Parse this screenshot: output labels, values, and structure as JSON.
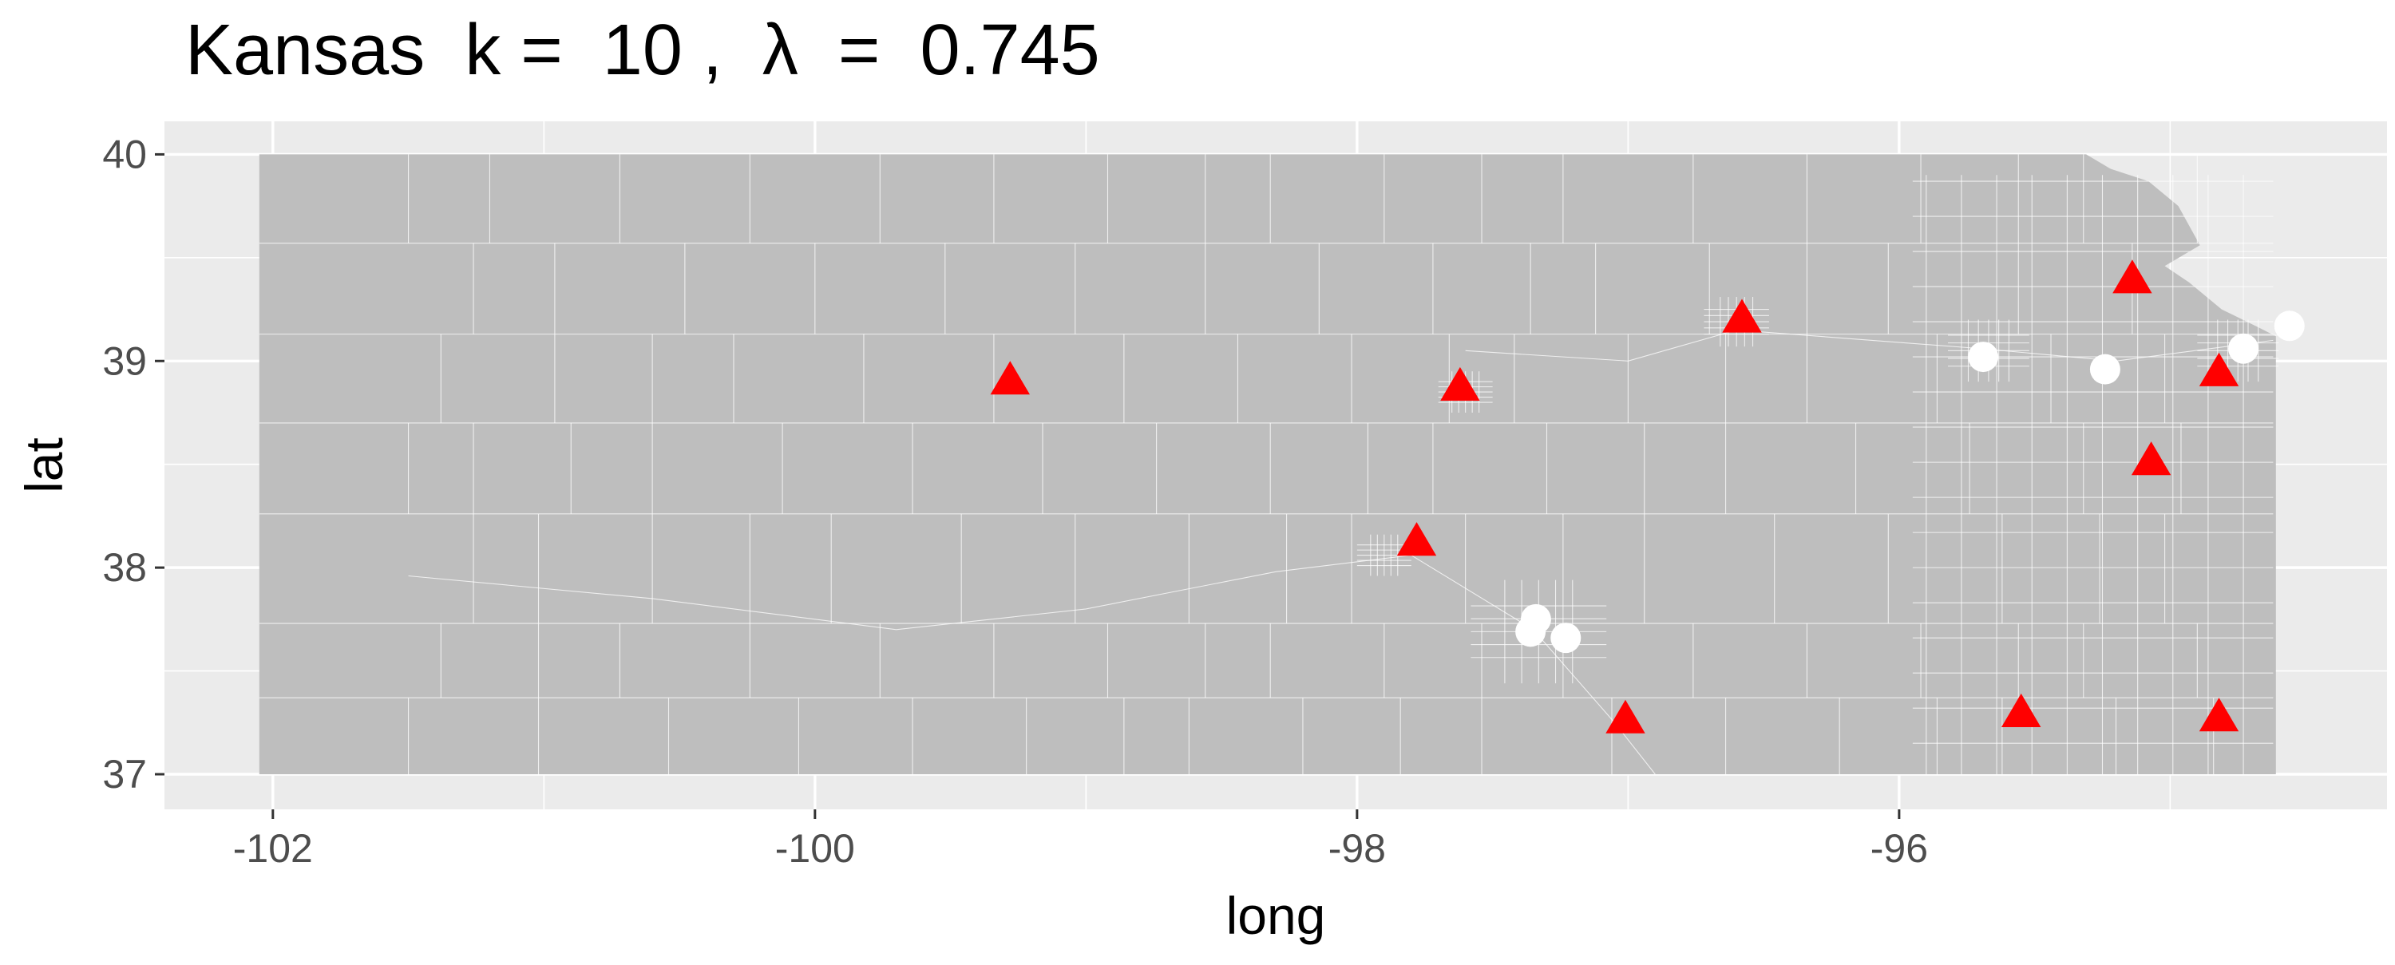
{
  "chart_data": {
    "type": "scatter",
    "title": "Kansas  k =  10 ,  λ  =  0.745",
    "xlabel": "long",
    "ylabel": "lat",
    "xlim": [
      -102.4,
      -94.2
    ],
    "ylim": [
      36.83,
      40.16
    ],
    "x_ticks": [
      -102,
      -100,
      -98,
      -96
    ],
    "x_tick_labels": [
      "-102",
      "-100",
      "-98",
      "-96"
    ],
    "y_ticks": [
      37,
      38,
      39,
      40
    ],
    "y_tick_labels": [
      "37",
      "38",
      "39",
      "40"
    ],
    "grid": true,
    "background_layer": "Kansas census tract map",
    "series": [
      {
        "marker": "triangle",
        "color": "#ff0000",
        "points": [
          {
            "x": -99.28,
            "y": 38.9
          },
          {
            "x": -97.62,
            "y": 38.87
          },
          {
            "x": -96.58,
            "y": 39.2
          },
          {
            "x": -95.14,
            "y": 39.39
          },
          {
            "x": -94.82,
            "y": 38.94
          },
          {
            "x": -95.07,
            "y": 38.51
          },
          {
            "x": -97.78,
            "y": 38.12
          },
          {
            "x": -97.01,
            "y": 37.26
          },
          {
            "x": -95.55,
            "y": 37.29
          },
          {
            "x": -94.82,
            "y": 37.27
          }
        ]
      },
      {
        "marker": "circle",
        "color": "#ffffff",
        "points": [
          {
            "x": -95.69,
            "y": 39.02
          },
          {
            "x": -95.24,
            "y": 38.96
          },
          {
            "x": -94.73,
            "y": 39.06
          },
          {
            "x": -94.56,
            "y": 39.17
          },
          {
            "x": -97.34,
            "y": 37.75
          },
          {
            "x": -97.36,
            "y": 37.69
          },
          {
            "x": -97.23,
            "y": 37.66
          }
        ]
      }
    ]
  }
}
